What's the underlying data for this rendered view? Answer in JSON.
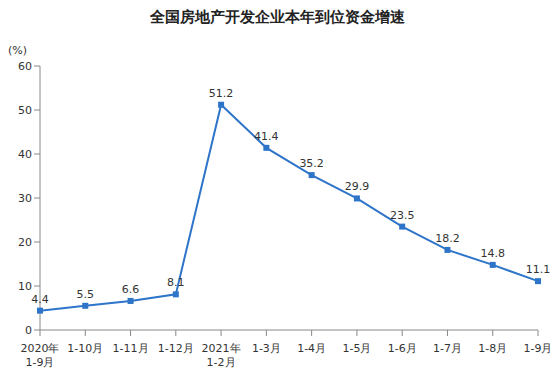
{
  "chart_data": {
    "type": "line",
    "title": "全国房地产开发企业本年到位资金增速",
    "y_label": "(%)",
    "categories": [
      "2020年\n1-9月",
      "1-10月",
      "1-11月",
      "1-12月",
      "2021年\n1-2月",
      "1-3月",
      "1-4月",
      "1-5月",
      "1-6月",
      "1-7月",
      "1-8月",
      "1-9月"
    ],
    "values": [
      4.4,
      5.5,
      6.6,
      8.1,
      51.2,
      41.4,
      35.2,
      29.9,
      23.5,
      18.2,
      14.8,
      11.1
    ],
    "color": "#2e74c9",
    "marker": "square",
    "ylim": [
      0,
      60
    ],
    "yticks": [
      0,
      10,
      20,
      30,
      40,
      50,
      60
    ],
    "grid": false,
    "data_labels": true
  }
}
